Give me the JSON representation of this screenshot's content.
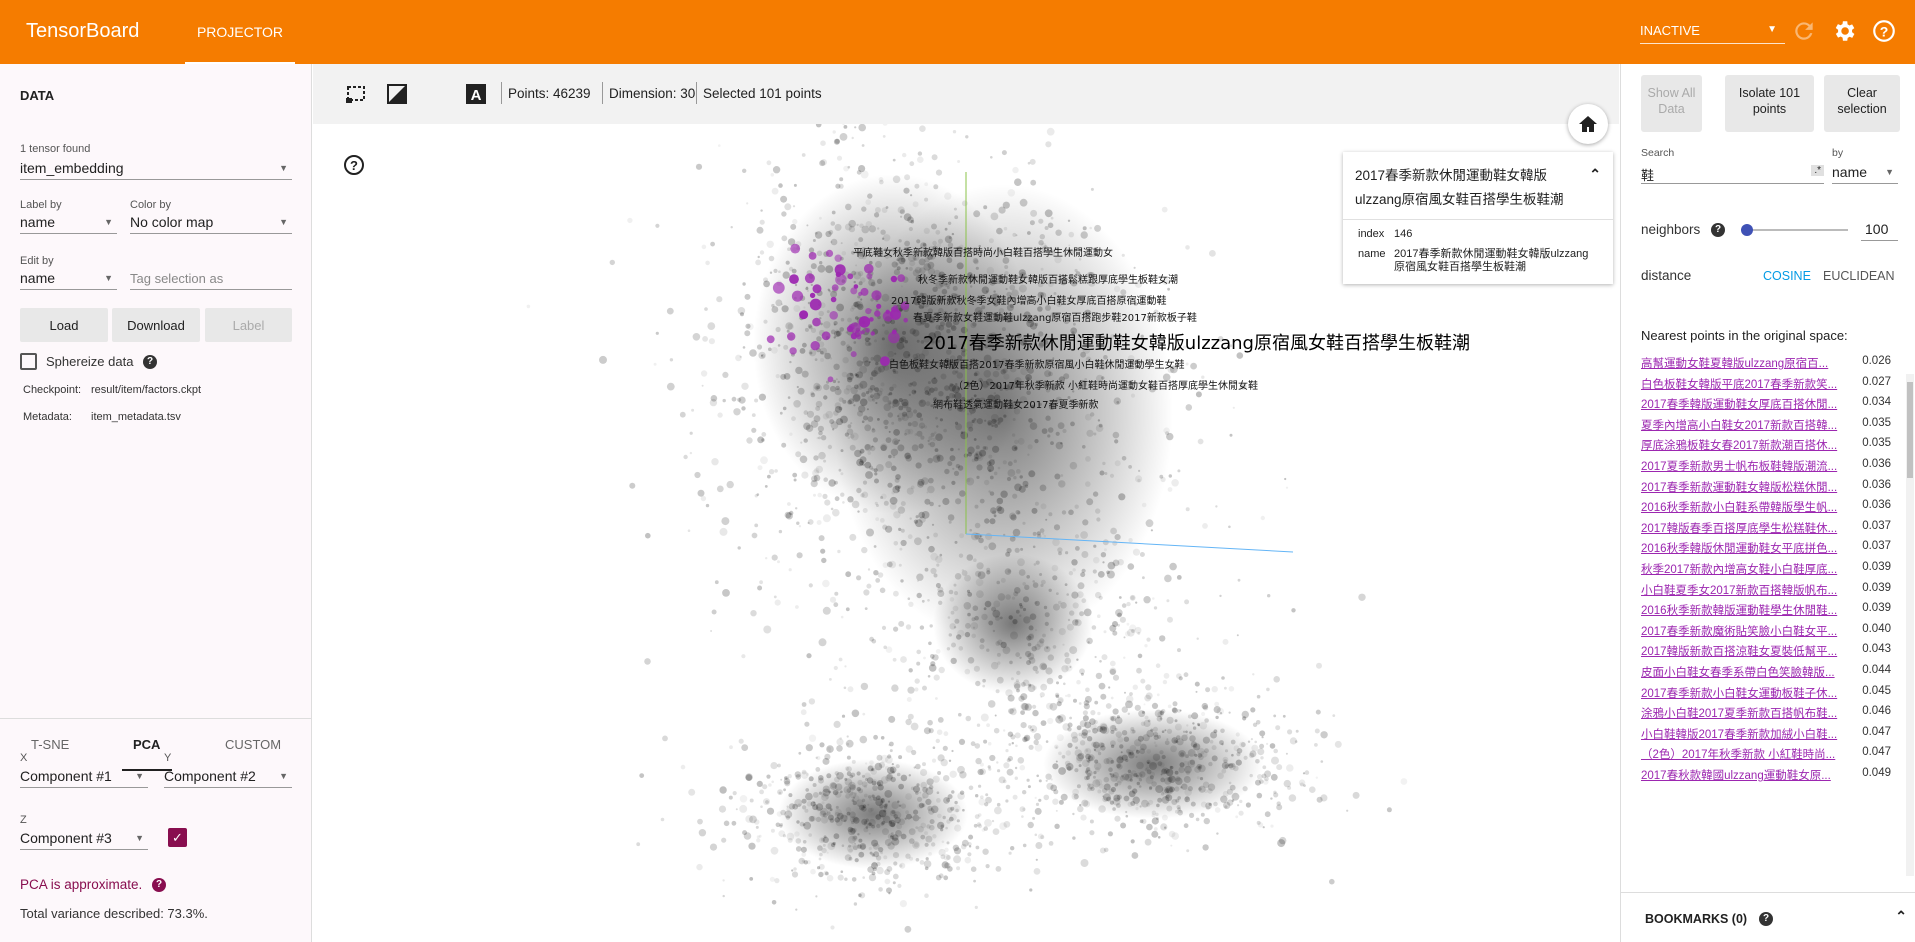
{
  "app": {
    "brand": "TensorBoard",
    "tab": "PROJECTOR",
    "run": "INACTIVE"
  },
  "left": {
    "title": "DATA",
    "tensors_found": "1 tensor found",
    "tensor": "item_embedding",
    "label_by_label": "Label by",
    "label_by": "name",
    "color_by_label": "Color by",
    "color_by": "No color map",
    "edit_by_label": "Edit by",
    "edit_by": "name",
    "tag_placeholder": "Tag selection as",
    "load": "Load",
    "download": "Download",
    "label_btn": "Label",
    "sphereize": "Sphereize data",
    "checkpoint_label": "Checkpoint:",
    "checkpoint": "result/item/factors.ckpt",
    "metadata_label": "Metadata:",
    "metadata": "item_metadata.tsv",
    "tabs": [
      "T-SNE",
      "PCA",
      "CUSTOM"
    ],
    "x_label": "X",
    "x": "Component #1",
    "y_label": "Y",
    "y": "Component #2",
    "z_label": "Z",
    "z": "Component #3",
    "pca_approx": "PCA is approximate.",
    "variance": "Total variance described: 73.3%."
  },
  "toolbar": {
    "points": "Points: 46239",
    "dimension": "Dimension: 30",
    "selected": "Selected 101 points"
  },
  "plot": {
    "main_label": "2017春季新款休閒運動鞋女韓版ulzzang原宿風女鞋百搭學生板鞋潮",
    "labels": [
      "平底鞋女秋季新款韓版百搭時尚小白鞋百搭學生休閒運動女",
      "秋冬季新款休閒運動鞋女韓版百搭鬆糕跟厚底學生板鞋女潮",
      "2017韓版新款秋冬季女鞋內增高小白鞋女厚底百搭原宿運動鞋",
      "春夏季新款女鞋運動鞋ulzzang原宿百搭跑步鞋2017新款板子鞋",
      "白色板鞋女韓版百搭2017春季新款原宿風小白鞋休閒運動學生女鞋",
      "（2色）2017年秋季新款 小紅鞋時尚運動女鞋百搭厚底學生休閒女鞋",
      "網布鞋透氣運動鞋女2017春夏季新款"
    ]
  },
  "info": {
    "title": "2017春季新款休閒運動鞋女韓版ulzzang原宿風女鞋百搭學生板鞋潮",
    "index_label": "index",
    "index": "146",
    "name_label": "name",
    "name": "2017春季新款休閒運動鞋女韓版ulzzang原宿風女鞋百搭學生板鞋潮"
  },
  "right": {
    "show_all": "Show All Data",
    "isolate": "Isolate 101 points",
    "clear": "Clear selection",
    "search_label": "Search",
    "search_value": "鞋",
    "regex": ".*",
    "by_label": "by",
    "by": "name",
    "neighbors_label": "neighbors",
    "neighbors": "100",
    "neighbors_frac": 0.04,
    "distance_label": "distance",
    "cosine": "COSINE",
    "euclidean": "EUCLIDEAN",
    "nearest_title": "Nearest points in the original space:",
    "bookmarks": "BOOKMARKS (0)",
    "nearest": [
      {
        "label": "高幫運動女鞋夏韓版ulzzang原宿百...",
        "value": "0.026"
      },
      {
        "label": "白色板鞋女韓版平底2017春季新款笑...",
        "value": "0.027"
      },
      {
        "label": "2017春季韓版運動鞋女厚底百搭休閒...",
        "value": "0.034"
      },
      {
        "label": "夏季內增高小白鞋女2017新款百搭韓...",
        "value": "0.035"
      },
      {
        "label": "厚底涂鴉板鞋女春2017新款潮百搭休...",
        "value": "0.035"
      },
      {
        "label": "2017夏季新款男士帆布板鞋韓版潮流...",
        "value": "0.036"
      },
      {
        "label": "2017春季新款運動鞋女韓版松糕休閒...",
        "value": "0.036"
      },
      {
        "label": "2016秋季新款小白鞋系帶韓版學生帆...",
        "value": "0.036"
      },
      {
        "label": "2017韓版春季百搭厚底學生松糕鞋休...",
        "value": "0.037"
      },
      {
        "label": "2016秋季韓版休閒運動鞋女平底拼色...",
        "value": "0.037"
      },
      {
        "label": "秋季2017新款內增高女鞋小白鞋厚底...",
        "value": "0.039"
      },
      {
        "label": "小白鞋夏季女2017新款百搭韓版帆布...",
        "value": "0.039"
      },
      {
        "label": "2016秋季新款韓版運動鞋學生休閒鞋...",
        "value": "0.039"
      },
      {
        "label": "2017春季新款魔術貼笑臉小白鞋女平...",
        "value": "0.040"
      },
      {
        "label": "2017韓版新款百搭涼鞋女夏裝低幫平...",
        "value": "0.043"
      },
      {
        "label": "皮面小白鞋女春季系帶白色笑臉韓版...",
        "value": "0.044"
      },
      {
        "label": "2017春季新款小白鞋女運動板鞋子休...",
        "value": "0.045"
      },
      {
        "label": "涂鴉小白鞋2017夏季新款百搭帆布鞋...",
        "value": "0.046"
      },
      {
        "label": "小白鞋韓版2017春季新款加絨小白鞋...",
        "value": "0.047"
      },
      {
        "label": "（2色）2017年秋季新款 小紅鞋時尚...",
        "value": "0.047"
      },
      {
        "label": "2017春秋款韓國ulzzang運動鞋女原...",
        "value": "0.049"
      }
    ]
  }
}
